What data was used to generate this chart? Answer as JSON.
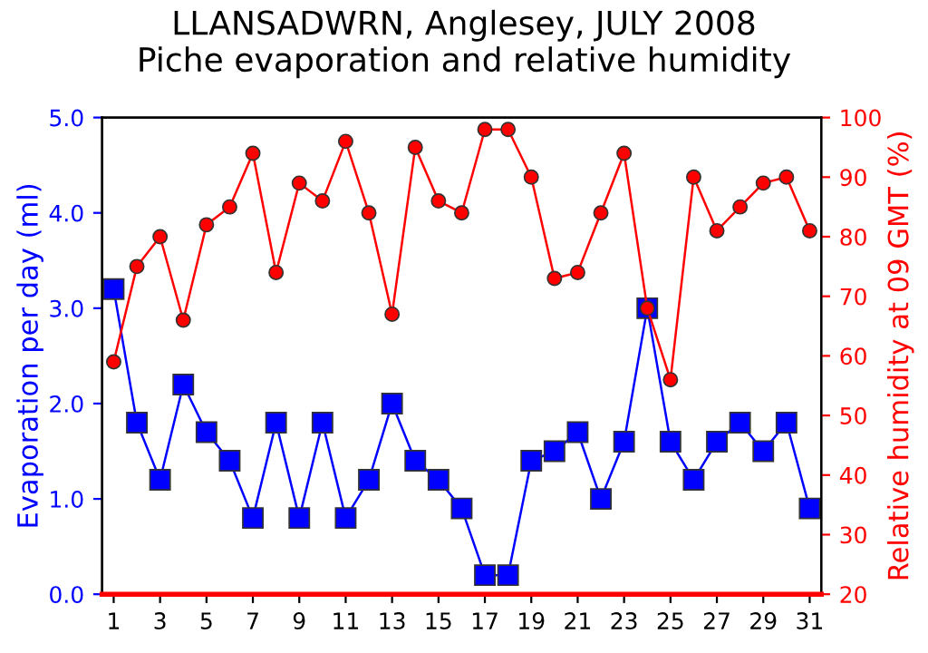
{
  "chart_data": {
    "type": "line",
    "title": "LLANSADWRN, Anglesey, JULY 2008\nPiche evaporation and relative humidity",
    "x": [
      1,
      2,
      3,
      4,
      5,
      6,
      7,
      8,
      9,
      10,
      11,
      12,
      13,
      14,
      15,
      16,
      17,
      18,
      19,
      20,
      21,
      22,
      23,
      24,
      25,
      26,
      27,
      28,
      29,
      30,
      31
    ],
    "series": [
      {
        "name": null,
        "color": "#0000ff",
        "marker": "square",
        "axis": "y",
        "values": [
          3.2,
          1.8,
          1.2,
          2.2,
          1.7,
          1.4,
          0.8,
          1.8,
          0.8,
          1.8,
          0.8,
          1.2,
          2.0,
          1.4,
          1.2,
          0.9,
          0.2,
          0.2,
          1.4,
          1.5,
          1.7,
          1.0,
          1.6,
          3.0,
          1.6,
          1.2,
          1.6,
          1.8,
          1.5,
          1.8,
          0.9
        ]
      },
      {
        "name": null,
        "color": "#ff0000",
        "marker": "circle",
        "axis": "y2",
        "values": [
          59,
          75,
          80,
          66,
          82,
          85,
          94,
          74,
          89,
          86,
          96,
          84,
          67,
          95,
          86,
          84,
          98,
          98,
          90,
          73,
          74,
          84,
          94,
          68,
          56,
          90,
          81,
          85,
          89,
          90,
          81
        ]
      }
    ],
    "xlim": [
      0.5,
      31.5
    ],
    "xticks": [
      1,
      3,
      5,
      7,
      9,
      11,
      13,
      15,
      17,
      19,
      21,
      23,
      25,
      27,
      29,
      31
    ],
    "ylim": [
      0,
      5
    ],
    "yticks": [
      {
        "value": 0,
        "label": "0.0"
      },
      {
        "value": 1,
        "label": "1.0"
      },
      {
        "value": 2,
        "label": "2.0"
      },
      {
        "value": 3,
        "label": "3.0"
      },
      {
        "value": 4,
        "label": "4.0"
      },
      {
        "value": 5,
        "label": "5.0"
      }
    ],
    "y2lim": [
      20,
      100
    ],
    "y2ticks": [
      20,
      30,
      40,
      50,
      60,
      70,
      80,
      90,
      100
    ],
    "ylabel": "Evaporation per day (ml)",
    "y2label": "Relative humidity at 09 GMT (%)",
    "grid": false,
    "legend": false
  }
}
